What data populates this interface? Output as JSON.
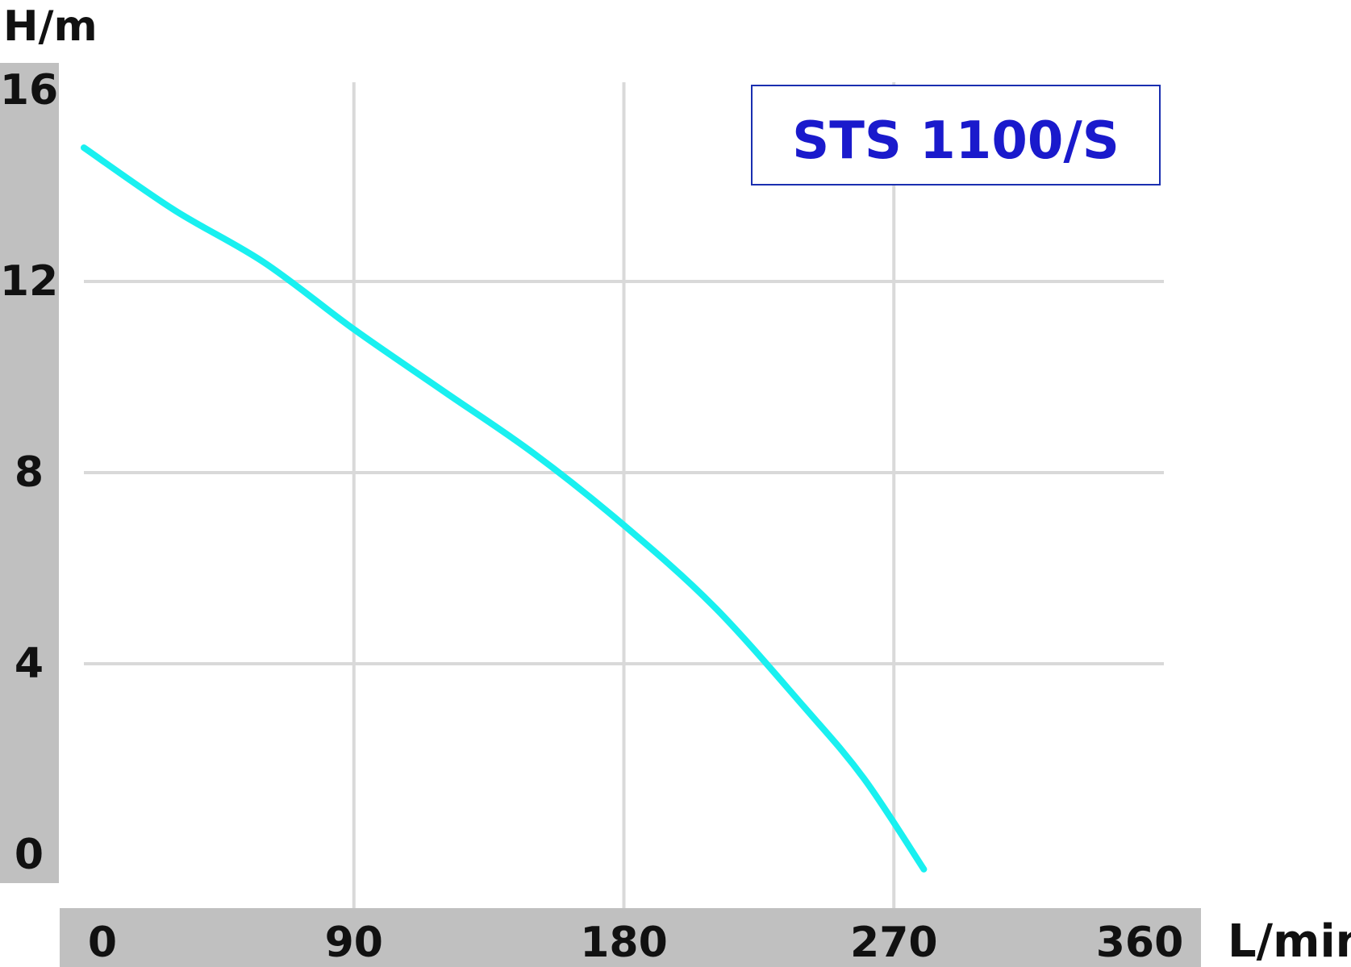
{
  "chart_data": {
    "type": "line",
    "title": "STS 1100/S",
    "xlabel": "L/min",
    "ylabel": "H/m",
    "xlim": [
      0,
      360
    ],
    "ylim": [
      0,
      16
    ],
    "x_ticks": [
      "0",
      "90",
      "180",
      "270",
      "360"
    ],
    "y_ticks": [
      "0",
      "4",
      "8",
      "12",
      "16"
    ],
    "grid": true,
    "colors": {
      "curve": "#19f0f0",
      "title": "#1a1acc",
      "title_border": "#1a2fb0",
      "axis_band": "#c0c0c0",
      "grid": "#d9d9d9",
      "text": "#111111"
    },
    "series": [
      {
        "x": [
          0,
          30,
          60,
          90,
          120,
          150,
          180,
          210,
          240,
          260,
          280
        ],
        "y": [
          14.8,
          13.5,
          12.4,
          11.0,
          9.7,
          8.4,
          6.9,
          5.2,
          3.1,
          1.6,
          -0.3
        ]
      }
    ]
  }
}
